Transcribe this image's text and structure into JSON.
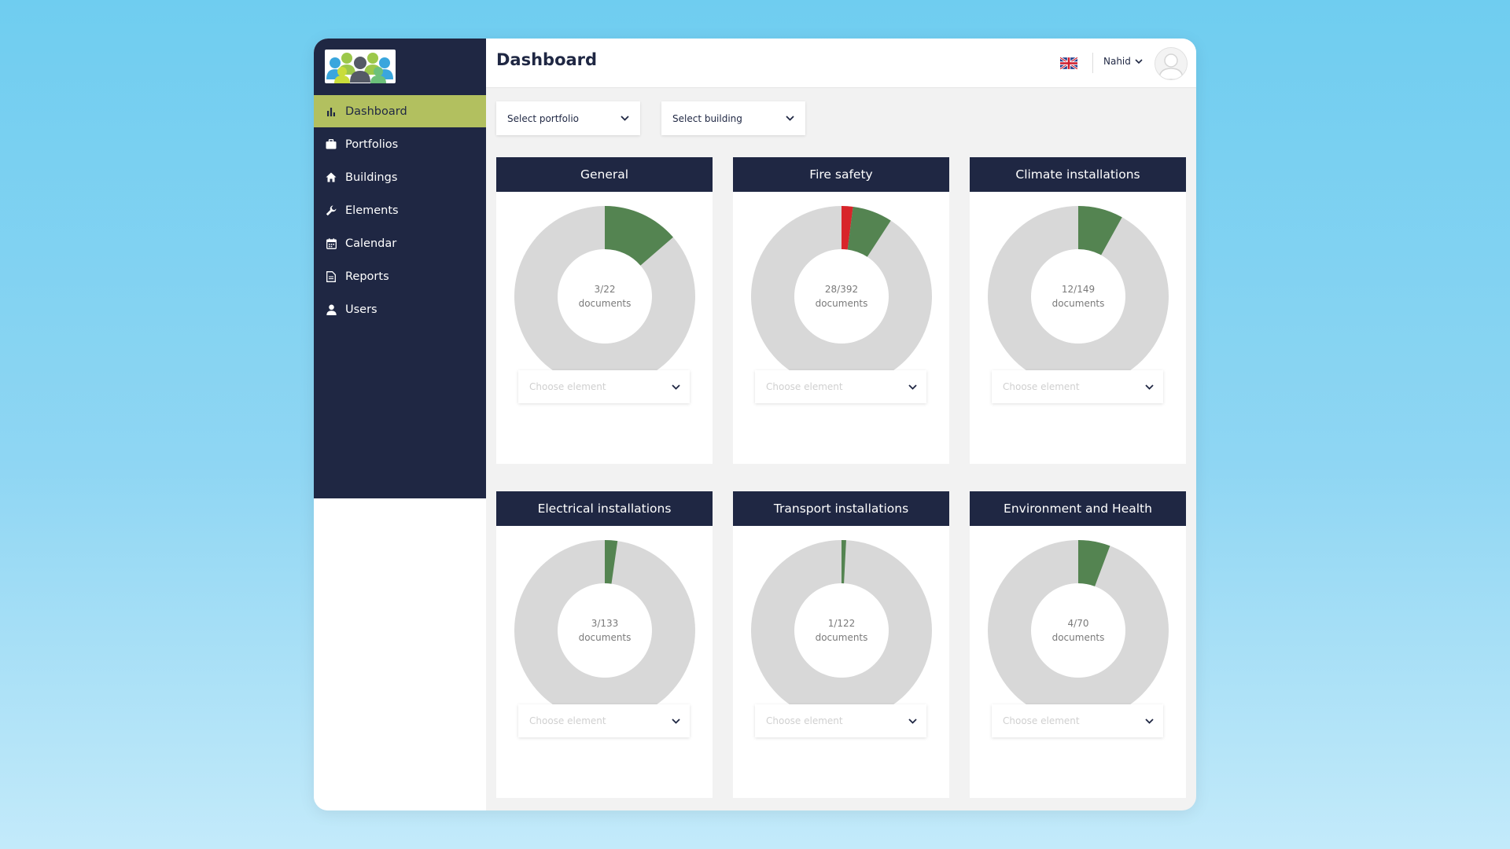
{
  "sidebar": {
    "items": [
      {
        "label": "Dashboard",
        "icon": "bar-chart-icon",
        "active": true
      },
      {
        "label": "Portfolios",
        "icon": "briefcase-icon",
        "active": false
      },
      {
        "label": "Buildings",
        "icon": "home-icon",
        "active": false
      },
      {
        "label": "Elements",
        "icon": "wrench-icon",
        "active": false
      },
      {
        "label": "Calendar",
        "icon": "calendar-icon",
        "active": false
      },
      {
        "label": "Reports",
        "icon": "document-icon",
        "active": false
      },
      {
        "label": "Users",
        "icon": "user-icon",
        "active": false
      }
    ]
  },
  "header": {
    "title": "Dashboard",
    "language_flag": "uk-flag-icon",
    "user_name": "Nahid"
  },
  "filters": {
    "portfolio": "Select portfolio",
    "building": "Select building"
  },
  "colors": {
    "sidebar": "#1f2743",
    "active_nav": "#b2c05f",
    "ring_done": "#548451",
    "ring_rest": "#d8d8d8",
    "ring_alert": "#d8252a"
  },
  "cards": [
    {
      "title": "General",
      "done": 3,
      "total": 22,
      "alert": 0,
      "count_text": "3/22",
      "unit": "documents",
      "placeholder": "Choose element"
    },
    {
      "title": "Fire safety",
      "done": 28,
      "total": 392,
      "alert": 8,
      "count_text": "28/392",
      "unit": "documents",
      "placeholder": "Choose element"
    },
    {
      "title": "Climate installations",
      "done": 12,
      "total": 149,
      "alert": 0,
      "count_text": "12/149",
      "unit": "documents",
      "placeholder": "Choose element"
    },
    {
      "title": "Electrical installations",
      "done": 3,
      "total": 133,
      "alert": 0,
      "count_text": "3/133",
      "unit": "documents",
      "placeholder": "Choose element"
    },
    {
      "title": "Transport installations",
      "done": 1,
      "total": 122,
      "alert": 0,
      "count_text": "1/122",
      "unit": "documents",
      "placeholder": "Choose element"
    },
    {
      "title": "Environment and Health",
      "done": 4,
      "total": 70,
      "alert": 0,
      "count_text": "4/70",
      "unit": "documents",
      "placeholder": "Choose element"
    }
  ]
}
